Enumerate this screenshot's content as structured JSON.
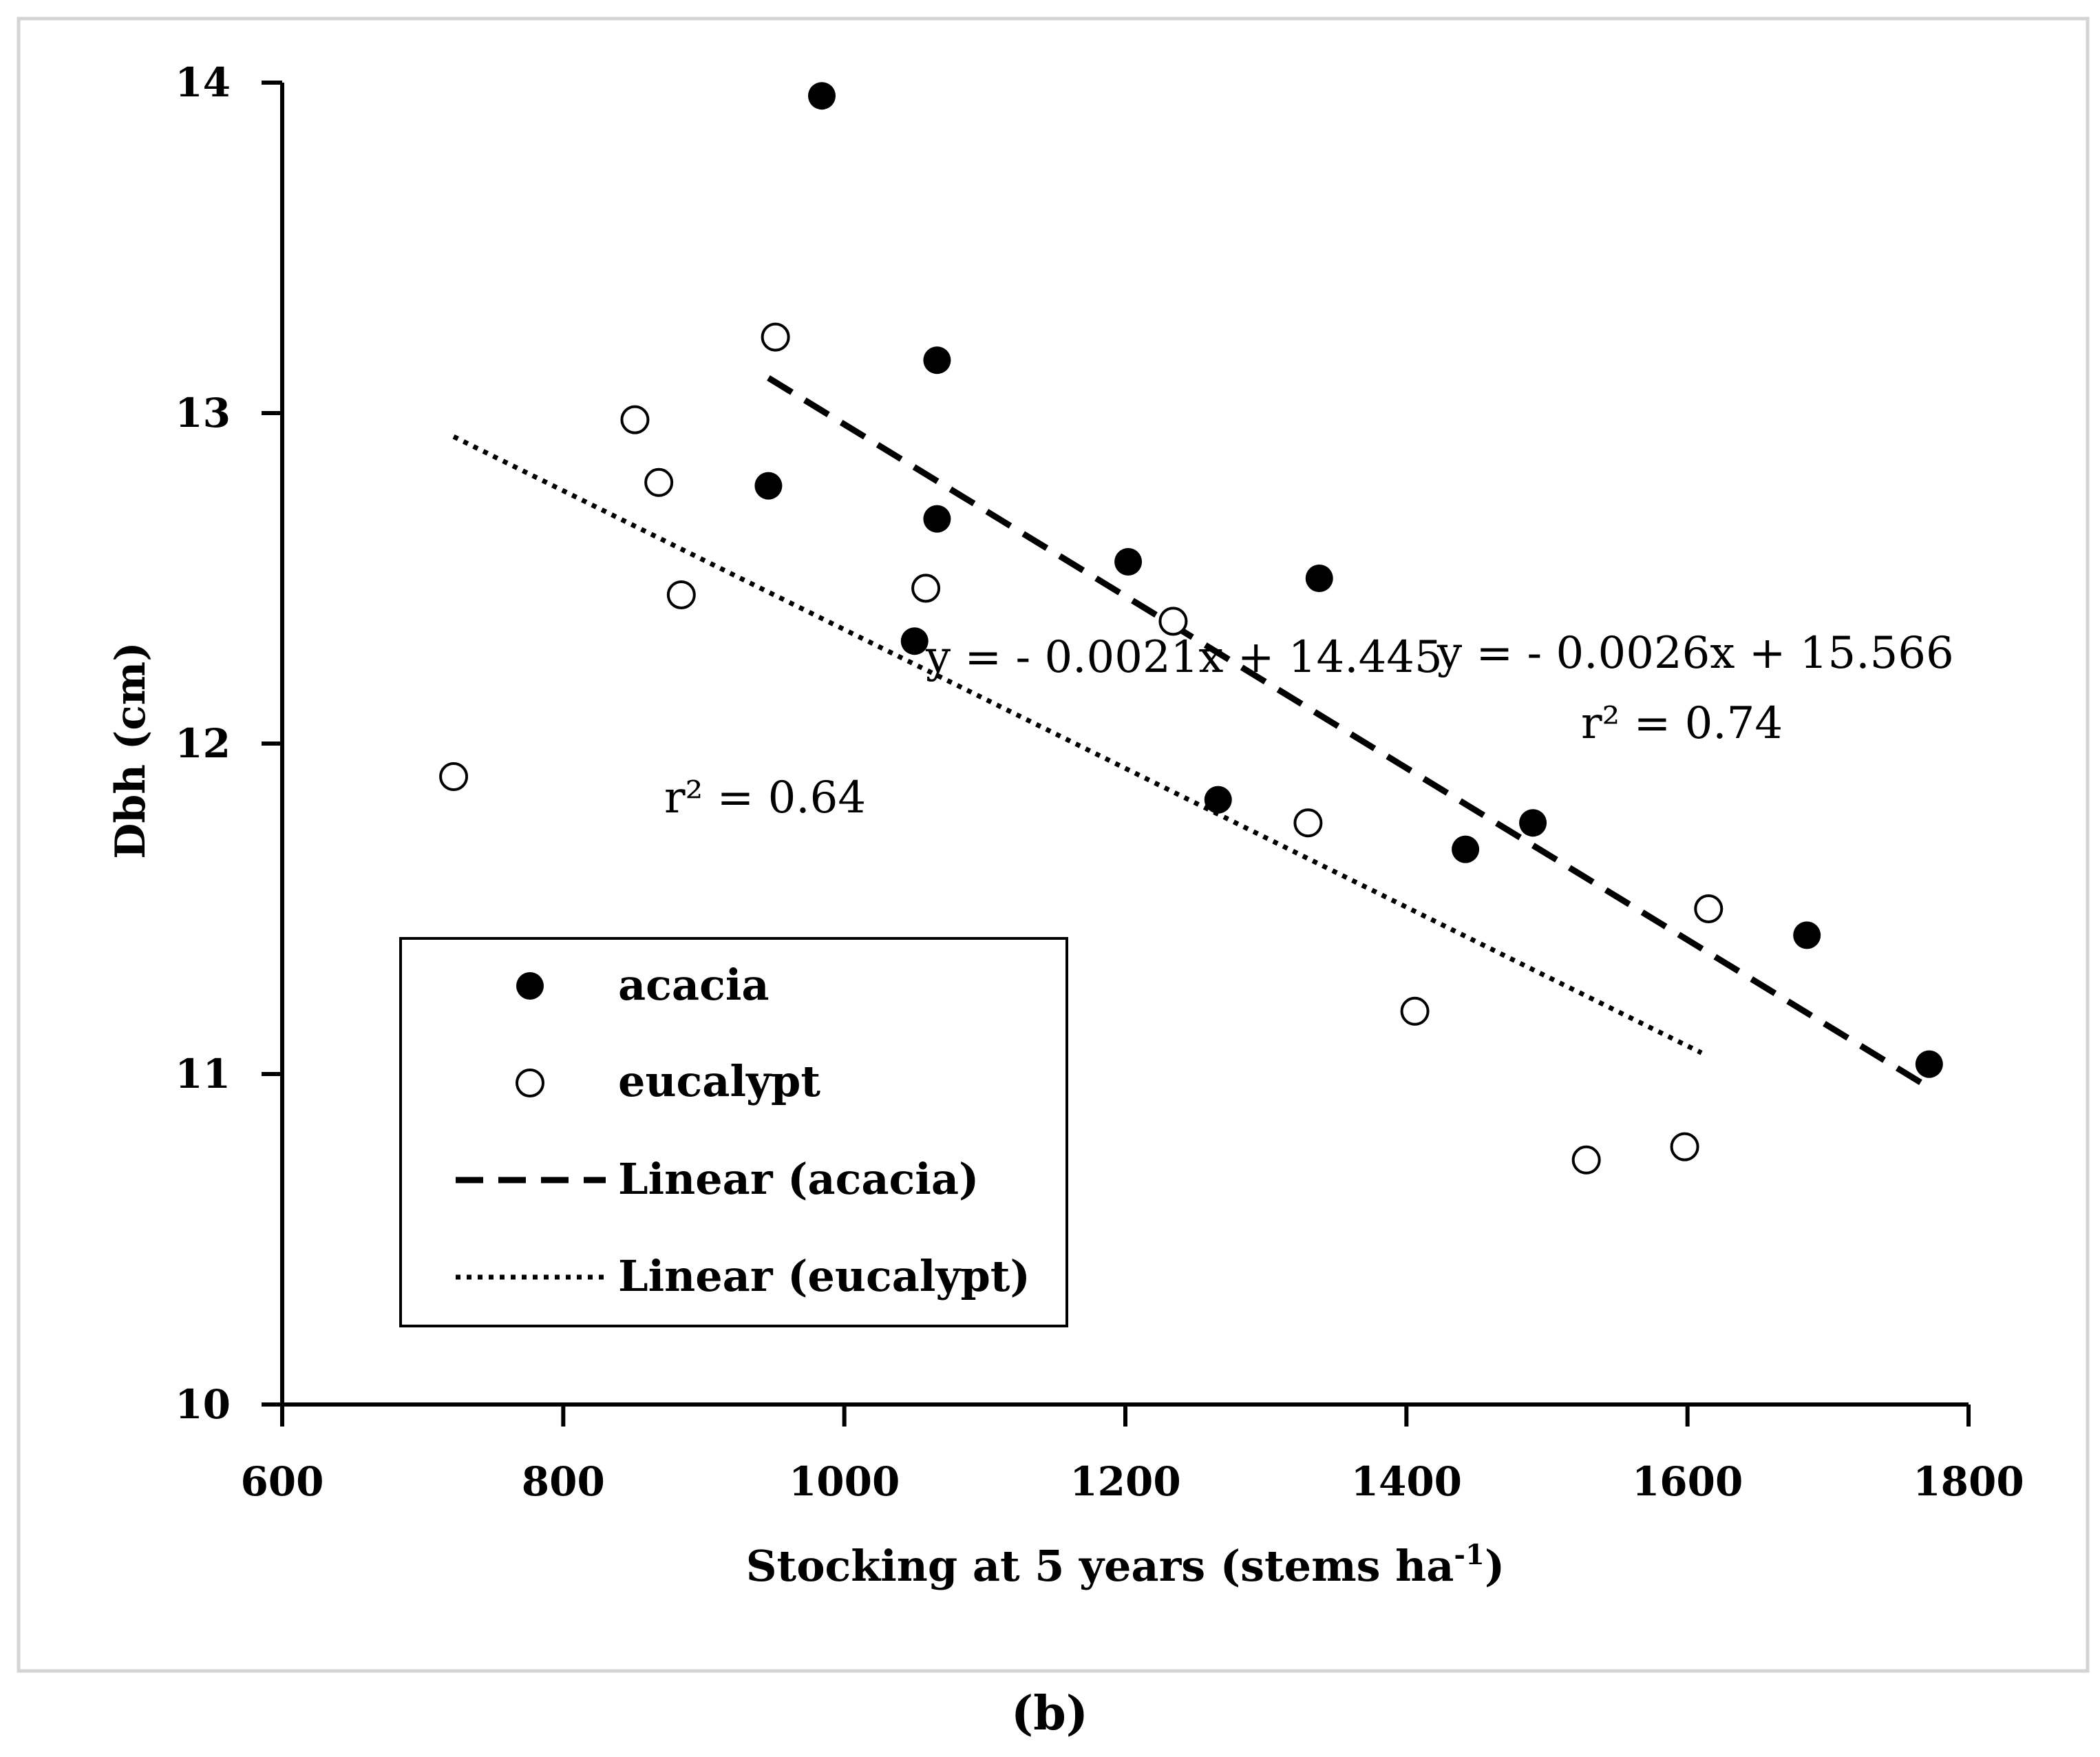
{
  "chart_data": {
    "type": "scatter",
    "title": "",
    "xlabel": "Stocking at 5 years (stems ha",
    "xlabel_superscript": "-1",
    "xlabel_suffix": ")",
    "ylabel": "Dbh (cm)",
    "xlim": [
      600,
      1800
    ],
    "ylim": [
      10,
      14
    ],
    "x_ticks": [
      600,
      800,
      1000,
      1200,
      1400,
      1600,
      1800
    ],
    "y_ticks": [
      10,
      11,
      12,
      13,
      14
    ],
    "grid": false,
    "legend_position": "lower-left",
    "series": [
      {
        "name": "acacia",
        "marker": "filled-circle",
        "x": [
          984,
          1066,
          946,
          1066,
          1202,
          1050,
          1338,
          1266,
          1442,
          1490,
          1685,
          1772
        ],
        "y": [
          13.96,
          13.16,
          12.78,
          12.68,
          12.55,
          12.31,
          12.5,
          11.83,
          11.68,
          11.76,
          11.42,
          11.03
        ]
      },
      {
        "name": "eucalypt",
        "marker": "open-circle",
        "x": [
          722,
          851,
          868,
          884,
          951,
          1058,
          1234,
          1330,
          1406,
          1528,
          1598,
          1615
        ],
        "y": [
          11.9,
          12.98,
          12.79,
          12.45,
          13.23,
          12.47,
          12.37,
          11.76,
          11.19,
          10.74,
          10.78,
          11.5
        ]
      }
    ],
    "trendlines": [
      {
        "name": "Linear (acacia)",
        "style": "dashed",
        "slope": -0.0026,
        "intercept": 15.566,
        "x_range": [
          946,
          1772
        ],
        "equation": "y = - 0.0026x + 15.566",
        "r2_label": "r² = 0.74"
      },
      {
        "name": "Linear (eucalypt)",
        "style": "dotted",
        "slope": -0.0021,
        "intercept": 14.445,
        "x_range": [
          722,
          1610
        ],
        "equation": "y = - 0.0021x + 14.445",
        "r2_label": "r² = 0.64"
      }
    ],
    "legend": [
      "acacia",
      "eucalypt",
      "Linear (acacia)",
      "Linear (eucalypt)"
    ],
    "panel_label": "(b)"
  }
}
